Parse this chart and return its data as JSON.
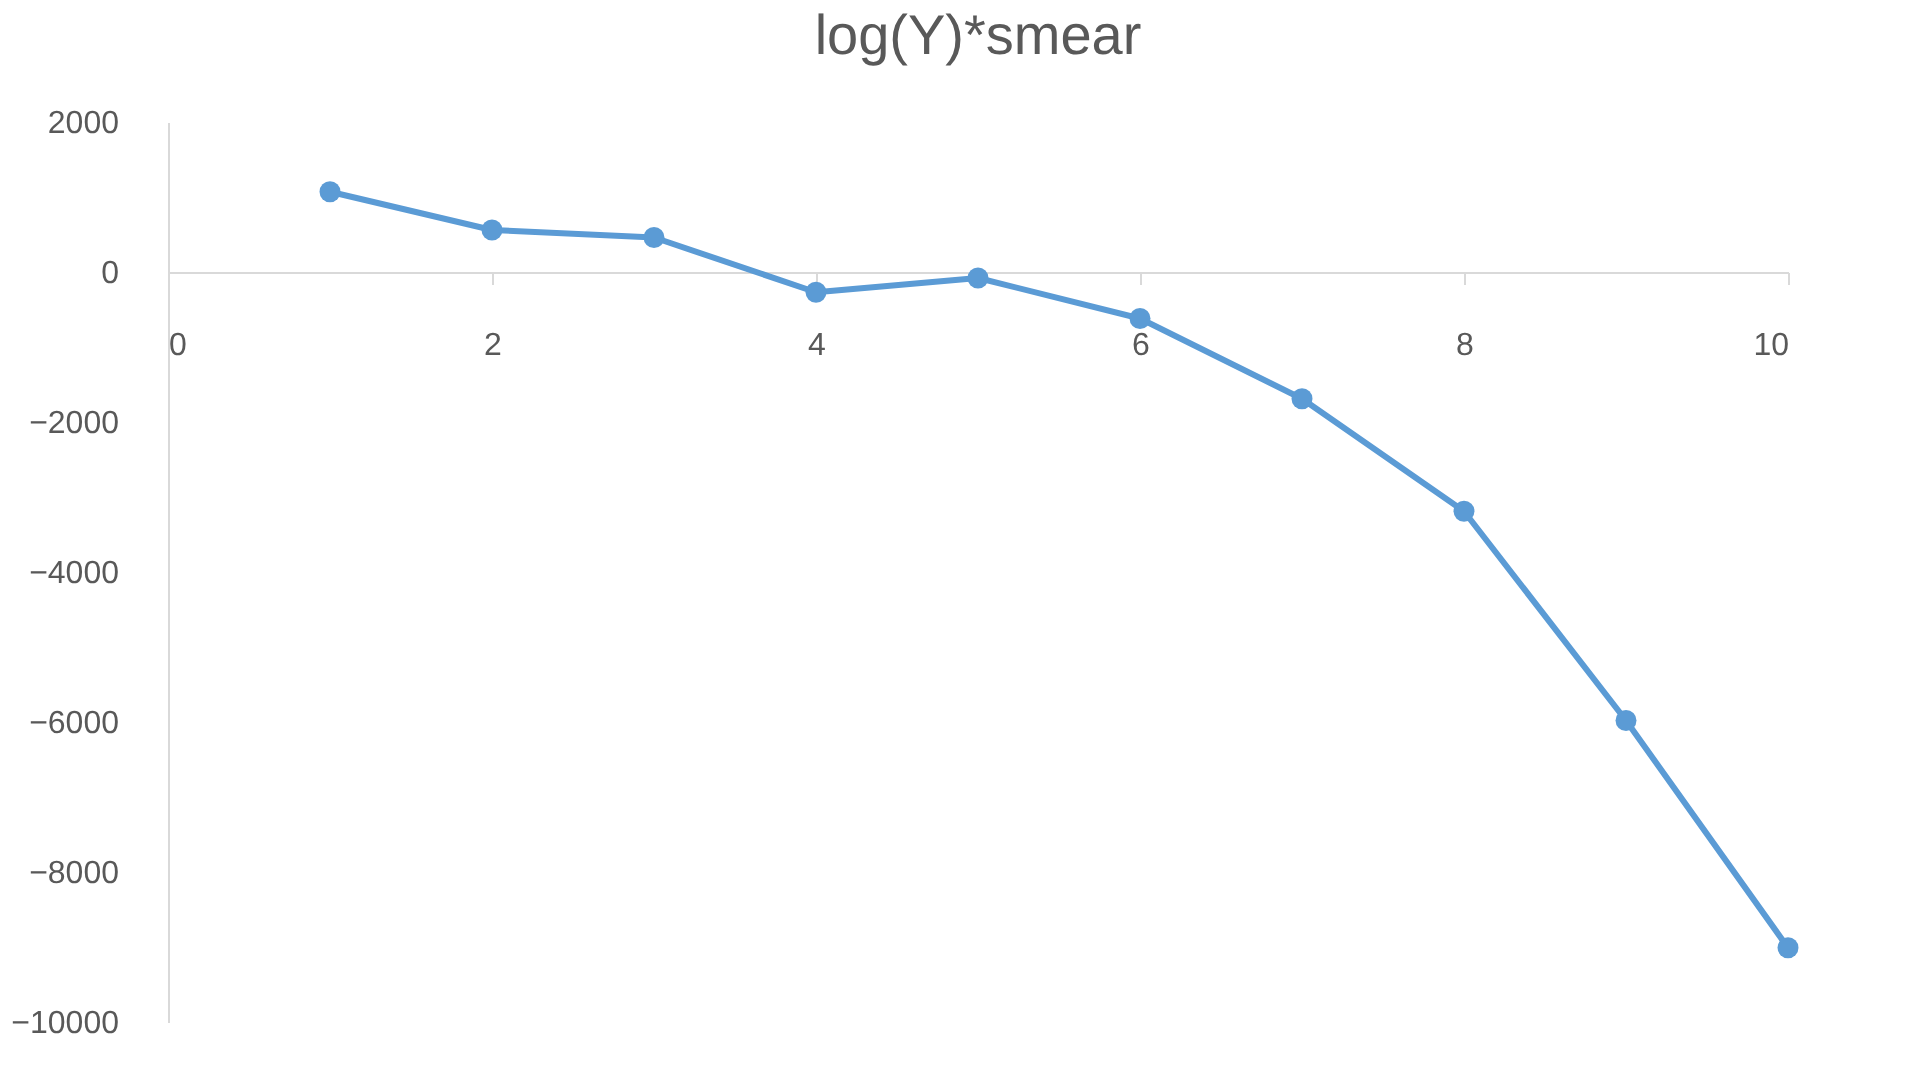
{
  "chart_data": {
    "type": "line",
    "title": "log(Y)*smear",
    "x": [
      1,
      2,
      3,
      4,
      5,
      6,
      7,
      8,
      9,
      10
    ],
    "series": [
      {
        "color": "#5b9bd5",
        "values": [
          1070,
          560,
          460,
          -270,
          -80,
          -620,
          -1690,
          -3190,
          -5980,
          -9010
        ]
      }
    ],
    "xlim": [
      0,
      10
    ],
    "xticks": [
      0,
      2,
      4,
      6,
      8,
      10
    ],
    "ylim": [
      -10000,
      2000
    ],
    "yticks": [
      -10000,
      -8000,
      -6000,
      -4000,
      -2000,
      0,
      2000
    ],
    "grid": false,
    "legend": false,
    "marker": "circle",
    "line_style": "solid"
  }
}
